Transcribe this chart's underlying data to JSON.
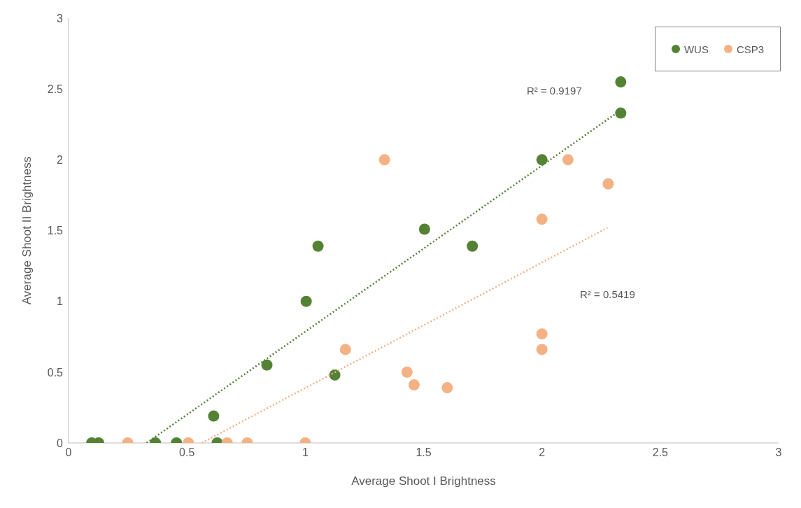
{
  "chart_data": {
    "type": "scatter",
    "xlabel": "Average Shoot I Brightness",
    "ylabel": "Average Shoot II Brightness",
    "xlim": [
      0,
      3
    ],
    "xticks": [
      0,
      0.5,
      1,
      1.5,
      2,
      2.5,
      3
    ],
    "ylim": [
      0,
      3
    ],
    "yticks": [
      0,
      0.5,
      1,
      1.5,
      2,
      2.5,
      3
    ],
    "grid": false,
    "legend": "top right",
    "series": [
      {
        "name": "WUS",
        "color": "#548235",
        "marker": "circle",
        "x": [
          0.098,
          0.127,
          0.367,
          0.456,
          0.613,
          0.628,
          0.838,
          1.004,
          1.054,
          1.125,
          1.504,
          1.706,
          2.0,
          2.333,
          2.333
        ],
        "values": [
          0,
          0,
          0,
          0,
          0.19,
          0,
          0.55,
          1.0,
          1.39,
          0.48,
          1.51,
          1.39,
          2.0,
          2.55,
          2.33
        ]
      },
      {
        "name": "CSP3",
        "color": "#f4b183",
        "marker": "circle",
        "x": [
          0.25,
          0.506,
          0.67,
          0.755,
          1.0,
          1.17,
          1.335,
          1.43,
          1.46,
          1.6,
          2.0,
          2.0,
          2.0,
          2.11,
          2.28
        ],
        "values": [
          0,
          0,
          0,
          0,
          0,
          0.66,
          2.0,
          0.5,
          0.41,
          0.39,
          1.58,
          0.77,
          0.66,
          2.0,
          1.83
        ]
      },
      {
        "type": "line",
        "color": "#548235",
        "line_style": "dotted",
        "x": [
          0.33,
          2.333
        ],
        "values": [
          0,
          2.35
        ]
      },
      {
        "type": "line",
        "color": "#f4b183",
        "line_style": "dotted",
        "x": [
          0.563,
          2.277
        ],
        "values": [
          0,
          1.52
        ]
      }
    ],
    "annotations": [
      "R² = 0.9197",
      "R² = 0.5419"
    ]
  }
}
